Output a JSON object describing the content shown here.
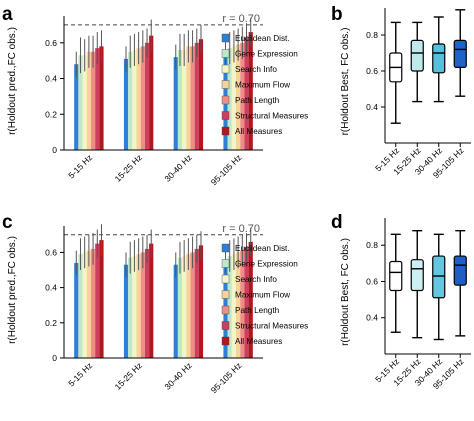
{
  "figure": {
    "reference_label": "r = 0.70"
  },
  "colors": {
    "Euclidean Dist.": "#2e7fd8",
    "Gene Expression": "#bfe8c8",
    "Search Info": "#f4f5c6",
    "Maximum Flow": "#f7d39a",
    "Path Length": "#ee8f86",
    "Structural Measures": "#cc3f5e",
    "All Measures": "#b0171f",
    "box_b": [
      "#ffffff",
      "#bfe9ec",
      "#55bfdd",
      "#1f63c7"
    ],
    "box_d": [
      "#ffffff",
      "#cbeff2",
      "#63c7e0",
      "#1f5ec4"
    ]
  },
  "chart_data": [
    {
      "panel": "a",
      "type": "bar",
      "categories": [
        "5-15 Hz",
        "15-25 Hz",
        "30-40 Hz",
        "95-105 Hz"
      ],
      "ylabel": "r(Holdout pred.,FC obs.)",
      "ylim": [
        0,
        0.75
      ],
      "yticks": [
        0,
        0.2,
        0.4,
        0.6
      ],
      "reference_line": 0.7,
      "legend": "right",
      "series": [
        {
          "name": "Euclidean Dist.",
          "values": [
            0.48,
            0.51,
            0.52,
            0.55
          ],
          "errors": [
            0.07,
            0.07,
            0.07,
            0.07
          ]
        },
        {
          "name": "Gene Expression",
          "values": [
            0.53,
            0.55,
            0.56,
            0.57
          ],
          "errors": [
            0.1,
            0.09,
            0.09,
            0.09
          ]
        },
        {
          "name": "Search Info",
          "values": [
            0.53,
            0.56,
            0.56,
            0.58
          ],
          "errors": [
            0.09,
            0.09,
            0.09,
            0.09
          ]
        },
        {
          "name": "Maximum Flow",
          "values": [
            0.55,
            0.57,
            0.58,
            0.59
          ],
          "errors": [
            0.09,
            0.09,
            0.09,
            0.09
          ]
        },
        {
          "name": "Path Length",
          "values": [
            0.55,
            0.58,
            0.58,
            0.6
          ],
          "errors": [
            0.09,
            0.09,
            0.09,
            0.09
          ]
        },
        {
          "name": "Structural Measures",
          "values": [
            0.57,
            0.6,
            0.6,
            0.63
          ],
          "errors": [
            0.09,
            0.08,
            0.08,
            0.08
          ]
        },
        {
          "name": "All Measures",
          "values": [
            0.58,
            0.64,
            0.62,
            0.66
          ],
          "errors": [
            0.09,
            0.09,
            0.08,
            0.08
          ]
        }
      ]
    },
    {
      "panel": "b",
      "type": "box",
      "categories": [
        "5-15 Hz",
        "15-25 Hz",
        "30-40 Hz",
        "95-105 Hz"
      ],
      "ylabel": "r(Holdout Best, FC obs.)",
      "ylim": [
        0.2,
        0.95
      ],
      "yticks": [
        0.4,
        0.6,
        0.8
      ],
      "boxes": [
        {
          "whisker_low": 0.31,
          "q1": 0.54,
          "median": 0.62,
          "q3": 0.7,
          "whisker_high": 0.87
        },
        {
          "whisker_low": 0.43,
          "q1": 0.6,
          "median": 0.7,
          "q3": 0.77,
          "whisker_high": 0.87
        },
        {
          "whisker_low": 0.43,
          "q1": 0.59,
          "median": 0.7,
          "q3": 0.75,
          "whisker_high": 0.9
        },
        {
          "whisker_low": 0.46,
          "q1": 0.62,
          "median": 0.72,
          "q3": 0.77,
          "whisker_high": 0.94
        }
      ]
    },
    {
      "panel": "c",
      "type": "bar",
      "categories": [
        "5-15 Hz",
        "15-25 Hz",
        "30-40 Hz",
        "95-105 Hz"
      ],
      "ylabel": "r(Holdout pred.,FC obs.)",
      "ylim": [
        0,
        0.75
      ],
      "yticks": [
        0,
        0.2,
        0.4,
        0.6
      ],
      "reference_line": 0.7,
      "legend": "right",
      "series": [
        {
          "name": "Euclidean Dist.",
          "values": [
            0.54,
            0.53,
            0.53,
            0.55
          ],
          "errors": [
            0.07,
            0.07,
            0.07,
            0.07
          ]
        },
        {
          "name": "Gene Expression",
          "values": [
            0.59,
            0.57,
            0.57,
            0.58
          ],
          "errors": [
            0.09,
            0.09,
            0.09,
            0.09
          ]
        },
        {
          "name": "Search Info",
          "values": [
            0.6,
            0.58,
            0.58,
            0.59
          ],
          "errors": [
            0.09,
            0.09,
            0.09,
            0.09
          ]
        },
        {
          "name": "Maximum Flow",
          "values": [
            0.61,
            0.59,
            0.59,
            0.6
          ],
          "errors": [
            0.09,
            0.09,
            0.09,
            0.09
          ]
        },
        {
          "name": "Path Length",
          "values": [
            0.62,
            0.6,
            0.6,
            0.61
          ],
          "errors": [
            0.09,
            0.09,
            0.09,
            0.09
          ]
        },
        {
          "name": "Structural Measures",
          "values": [
            0.65,
            0.62,
            0.62,
            0.63
          ],
          "errors": [
            0.08,
            0.08,
            0.08,
            0.08
          ]
        },
        {
          "name": "All Measures",
          "values": [
            0.67,
            0.65,
            0.64,
            0.66
          ],
          "errors": [
            0.09,
            0.08,
            0.08,
            0.08
          ]
        }
      ]
    },
    {
      "panel": "d",
      "type": "box",
      "categories": [
        "5-15 Hz",
        "15-25 Hz",
        "30-40 Hz",
        "95-105 Hz"
      ],
      "ylabel": "r(Holdout Best, FC obs.)",
      "ylim": [
        0.2,
        0.95
      ],
      "yticks": [
        0.4,
        0.6,
        0.8
      ],
      "boxes": [
        {
          "whisker_low": 0.32,
          "q1": 0.55,
          "median": 0.65,
          "q3": 0.71,
          "whisker_high": 0.86
        },
        {
          "whisker_low": 0.29,
          "q1": 0.55,
          "median": 0.67,
          "q3": 0.72,
          "whisker_high": 0.88
        },
        {
          "whisker_low": 0.28,
          "q1": 0.51,
          "median": 0.63,
          "q3": 0.74,
          "whisker_high": 0.86
        },
        {
          "whisker_low": 0.3,
          "q1": 0.58,
          "median": 0.69,
          "q3": 0.74,
          "whisker_high": 0.88
        }
      ]
    }
  ]
}
